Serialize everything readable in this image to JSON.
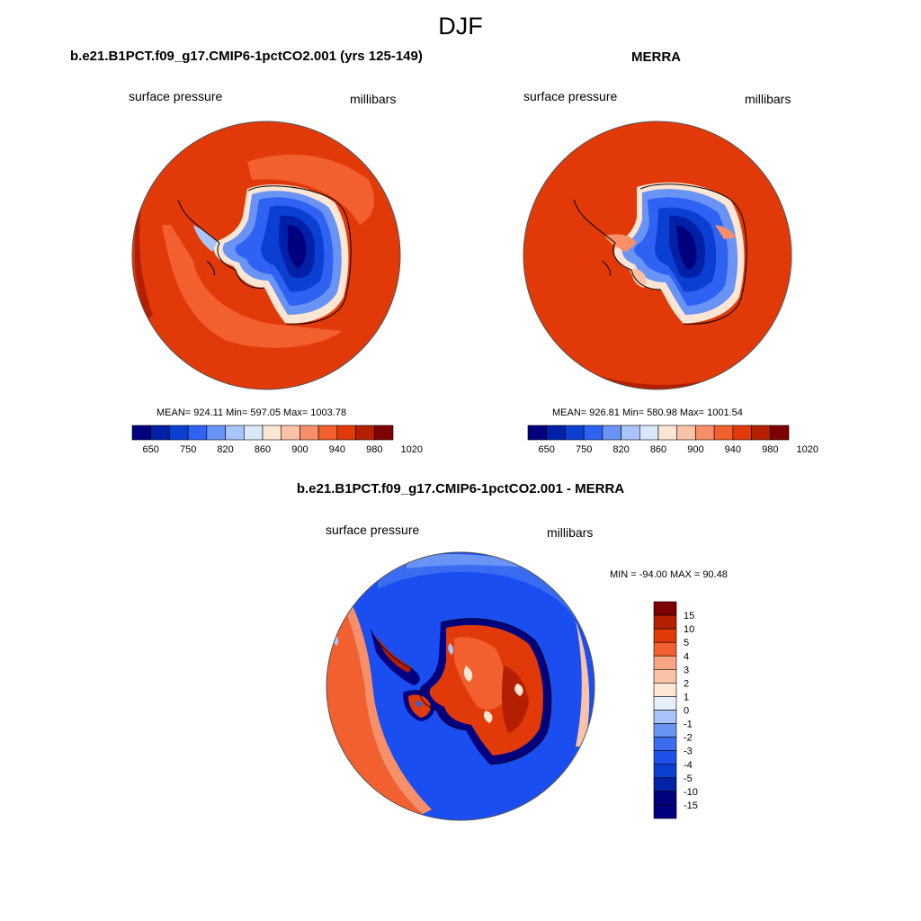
{
  "figure_title": "DJF",
  "panels": [
    {
      "title": "b.e21.B1PCT.f09_g17.CMIP6-1pctCO2.001 (yrs 125-149)",
      "left_label": "surface pressure",
      "right_label": "millibars",
      "stats": "MEAN= 924.11  Min= 597.05  Max= 1003.78",
      "colorbar_ticks": [
        "650",
        "750",
        "820",
        "860",
        "900",
        "940",
        "980",
        "1020"
      ]
    },
    {
      "title": "MERRA",
      "left_label": "surface pressure",
      "right_label": "millibars",
      "stats": "MEAN= 926.81  Min= 580.98  Max= 1001.54",
      "colorbar_ticks": [
        "650",
        "750",
        "820",
        "860",
        "900",
        "940",
        "980",
        "1020"
      ]
    },
    {
      "title": "b.e21.B1PCT.f09_g17.CMIP6-1pctCO2.001 - MERRA",
      "left_label": "surface pressure",
      "right_label": "millibars",
      "stats": "MIN = -94.00 MAX =  90.48",
      "colorbar_ticks": [
        "15",
        "10",
        "5",
        "4",
        "3",
        "2",
        "1",
        "0",
        "-1",
        "-2",
        "-3",
        "-4",
        "-5",
        "-10",
        "-15"
      ]
    }
  ],
  "colors": {
    "abs_scale": [
      "#00007f",
      "#0020a8",
      "#0a3fd2",
      "#2d62f2",
      "#6a93f6",
      "#a9c4f8",
      "#d9e7fb",
      "#fde6d4",
      "#fbc3a5",
      "#f98f68",
      "#f2602f",
      "#e13a08",
      "#b41f02",
      "#7f0000"
    ],
    "diff_scale": [
      "#00007f",
      "#0020a8",
      "#0a3fd2",
      "#1e50ea",
      "#3a6cf2",
      "#6a93f6",
      "#a9c4f8",
      "#e6eefc",
      "#fde6d4",
      "#fbc3a5",
      "#f9a583",
      "#f2602f",
      "#e13a08",
      "#b41f02",
      "#7f0000"
    ],
    "ocean_abs": "#e13a08",
    "ocean_diff": "#1a4ef0",
    "coast": "#000000"
  }
}
